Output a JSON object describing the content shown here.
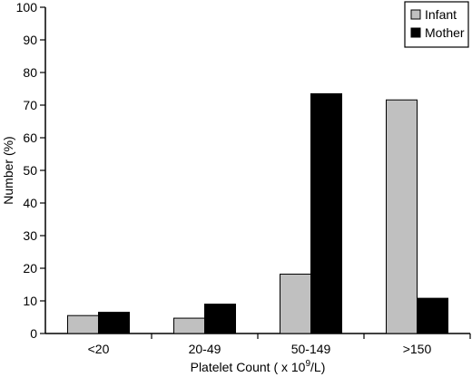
{
  "chart_data": {
    "type": "bar",
    "categories": [
      "<20",
      "20-49",
      "50-149",
      ">150"
    ],
    "series": [
      {
        "name": "Infant",
        "values": [
          5.5,
          4.7,
          18.2,
          71.6
        ],
        "color": "#c0c0c0"
      },
      {
        "name": "Mother",
        "values": [
          6.5,
          9.0,
          73.5,
          10.8
        ],
        "color": "#000000"
      }
    ],
    "xlabel_prefix": "Platelet Count ( x 10",
    "xlabel_sup": "9",
    "xlabel_suffix": "/L)",
    "ylabel": "Number (%)",
    "ylim": [
      0,
      100
    ],
    "yticks": [
      0,
      10,
      20,
      30,
      40,
      50,
      60,
      70,
      80,
      90,
      100
    ],
    "legend_position": "top-right",
    "grid": false
  }
}
